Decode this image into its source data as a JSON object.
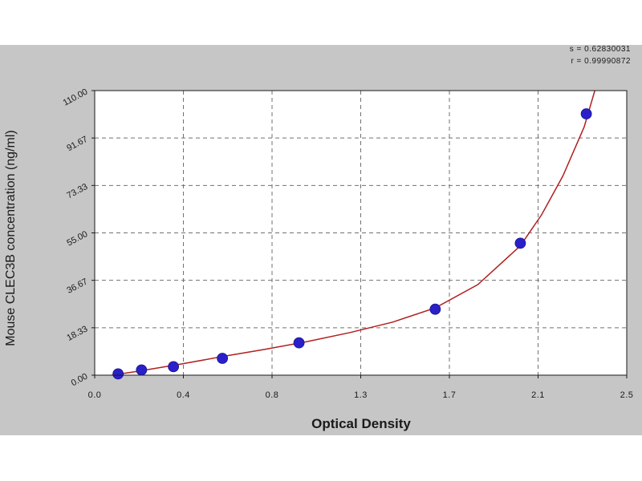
{
  "chart_data": {
    "type": "scatter",
    "title": "",
    "xlabel": "Optical Density",
    "ylabel": "Mouse CLEC3B  concentration (ng/ml)",
    "xlim": [
      0.0,
      2.5
    ],
    "ylim": [
      0.0,
      110.0
    ],
    "x_ticks": [
      "0.0",
      "0.4",
      "0.8",
      "1.3",
      "1.7",
      "2.1",
      "2.5"
    ],
    "y_ticks": [
      "0.00",
      "18.33",
      "36.67",
      "55.00",
      "73.33",
      "91.67",
      "110.00"
    ],
    "grid": true,
    "series": [
      {
        "type": "scatter",
        "color": "#2a1fc8",
        "x": [
          0.11,
          0.22,
          0.37,
          0.6,
          0.96,
          1.6,
          2.0,
          2.31
        ],
        "y": [
          0.5,
          2.0,
          3.3,
          6.5,
          12.5,
          25.5,
          51.0,
          101.0
        ]
      },
      {
        "type": "line",
        "color": "#b02020",
        "x": [
          0.08,
          0.2,
          0.4,
          0.6,
          0.8,
          1.0,
          1.2,
          1.4,
          1.6,
          1.8,
          2.0,
          2.1,
          2.2,
          2.3,
          2.35
        ],
        "y": [
          0.0,
          1.5,
          4.2,
          7.2,
          10.0,
          13.0,
          16.5,
          20.5,
          26.0,
          35.0,
          50.0,
          62.0,
          77.0,
          96.0,
          110.0
        ]
      }
    ],
    "annotations": [
      "s = 0.62830031",
      "r = 0.99990872"
    ]
  },
  "colors": {
    "panel_background": "#c6c6c6",
    "plot_background": "#ffffff",
    "grid": "#707070",
    "axis": "#1a1a1a",
    "points": "#2a1fc8",
    "curve": "#b02020"
  }
}
